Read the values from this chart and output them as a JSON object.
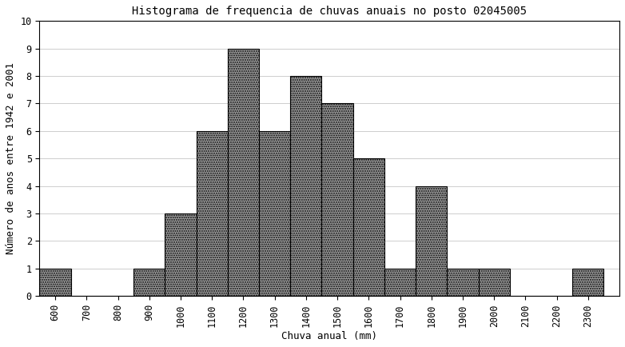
{
  "title": "Histograma de frequencia de chuvas anuais no posto 02045005",
  "xlabel": "Chuva anual (mm)",
  "ylabel": "Número de anos entre 1942 e 2001",
  "bin_edges": [
    600,
    700,
    800,
    900,
    1000,
    1100,
    1200,
    1300,
    1400,
    1500,
    1600,
    1700,
    1800,
    1900,
    2000,
    2100,
    2200,
    2300,
    2400
  ],
  "frequencies": [
    1,
    0,
    0,
    1,
    3,
    6,
    9,
    6,
    8,
    7,
    5,
    1,
    4,
    1,
    1,
    0,
    0,
    1
  ],
  "bar_color": "#a0a0a0",
  "bar_edgecolor": "#000000",
  "ylim": [
    0,
    10
  ],
  "yticks": [
    0,
    1,
    2,
    3,
    4,
    5,
    6,
    7,
    8,
    9,
    10
  ],
  "xtick_labels": [
    "600",
    "700",
    "800",
    "900",
    "1000",
    "1100",
    "1200",
    "1300",
    "1400",
    "1500",
    "1600",
    "1700",
    "1800",
    "1900",
    "2000",
    "2100",
    "2200",
    "2300"
  ],
  "xtick_positions": [
    650,
    750,
    850,
    950,
    1050,
    1150,
    1250,
    1350,
    1450,
    1550,
    1650,
    1750,
    1850,
    1950,
    2050,
    2150,
    2250,
    2350
  ],
  "xlim": [
    600,
    2450
  ],
  "background_color": "#ffffff",
  "title_fontsize": 10,
  "axis_fontsize": 9,
  "tick_fontsize": 8.5
}
